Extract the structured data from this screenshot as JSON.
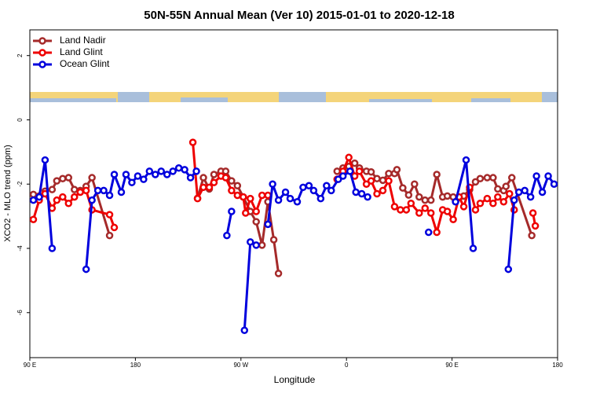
{
  "chart_data": {
    "type": "line",
    "title": "50N-55N Annual Mean (Ver 10)   2015-01-01 to 2020-12-18",
    "xlabel": "Longitude",
    "ylabel": "XCO2 - MLO trend (ppm)",
    "xlim": [
      90,
      540
    ],
    "ylim": [
      -7.4,
      2.8
    ],
    "xticks": [
      {
        "value": 90,
        "label": "90 E"
      },
      180,
      {
        "value": 270,
        "label": "90 W"
      },
      {
        "value": 360,
        "label": "0"
      },
      {
        "value": 450,
        "label": "90 E"
      },
      {
        "value": 540,
        "label": "180"
      }
    ],
    "yticks": [
      2,
      0,
      -2,
      -4,
      -6
    ],
    "legend": "upper left",
    "series": [
      {
        "name": "Land Nadir",
        "color": "#a52a2a",
        "x": [
          93,
          98,
          103,
          109,
          113,
          118,
          123,
          128,
          133,
          138,
          143,
          158,
          null,
          233,
          238,
          243,
          247,
          253,
          257,
          262,
          267,
          272,
          278,
          283,
          288,
          293,
          298,
          302,
          null,
          352,
          357,
          362,
          367,
          371,
          377,
          381,
          386,
          391,
          396,
          401,
          403,
          408,
          413,
          418,
          422,
          427,
          432,
          437,
          442,
          446,
          451,
          456,
          460,
          465,
          470,
          474,
          480,
          485,
          489,
          494,
          496,
          501,
          518
        ],
        "values": [
          -2.32,
          -2.37,
          -2.22,
          -2.17,
          -1.9,
          -1.83,
          -1.8,
          -2.17,
          -2.2,
          -2.07,
          -1.8,
          -3.6,
          null,
          -2.44,
          -1.8,
          -2.15,
          -1.7,
          -1.6,
          -1.6,
          -1.9,
          -2.05,
          -2.4,
          -2.85,
          -3.17,
          -3.9,
          -2.55,
          -3.73,
          -4.78,
          null,
          -1.6,
          -1.5,
          -1.45,
          -1.35,
          -1.5,
          -1.6,
          -1.62,
          -1.83,
          -1.88,
          -1.67,
          -1.67,
          -1.55,
          -2.12,
          -2.34,
          -2.0,
          -2.4,
          -2.5,
          -2.5,
          -1.7,
          -2.4,
          -2.37,
          -2.4,
          -2.42,
          -2.37,
          -2.17,
          -1.93,
          -1.83,
          -1.8,
          -1.8,
          -2.15,
          -2.2,
          -2.07,
          -1.8,
          -3.6
        ]
      },
      {
        "name": "Land Glint",
        "color": "#ee0000",
        "x": [
          93,
          98,
          103,
          109,
          113,
          118,
          123,
          128,
          133,
          138,
          143,
          158,
          162,
          null,
          229,
          233,
          238,
          243,
          247,
          253,
          257,
          262,
          267,
          272,
          274,
          278,
          283,
          288,
          293,
          null,
          352,
          357,
          362,
          367,
          371,
          377,
          381,
          386,
          391,
          396,
          401,
          406,
          411,
          415,
          422,
          427,
          432,
          437,
          442,
          446,
          451,
          456,
          460,
          465,
          470,
          474,
          480,
          485,
          489,
          494,
          499,
          503,
          null,
          519,
          521
        ],
        "values": [
          -3.1,
          -2.5,
          -2.3,
          -2.75,
          -2.5,
          -2.4,
          -2.6,
          -2.4,
          -2.25,
          -2.2,
          -2.8,
          -2.95,
          -3.35,
          null,
          -0.7,
          -2.45,
          -2.1,
          -2.1,
          -1.95,
          -1.75,
          -1.8,
          -2.2,
          -2.35,
          -2.4,
          -2.9,
          -2.45,
          -2.85,
          -2.35,
          -2.35,
          null,
          -1.85,
          -1.6,
          -1.17,
          -1.75,
          -1.6,
          -2.0,
          -1.9,
          -2.3,
          -2.2,
          -1.9,
          -2.7,
          -2.8,
          -2.8,
          -2.6,
          -2.9,
          -2.75,
          -2.9,
          -3.5,
          -2.8,
          -2.85,
          -3.1,
          -2.4,
          -2.7,
          -2.1,
          -2.8,
          -2.6,
          -2.45,
          -2.6,
          -2.4,
          -2.55,
          -2.3,
          -2.8,
          null,
          -2.9,
          -3.3
        ]
      },
      {
        "name": "Ocean Glint",
        "color": "#0000dd",
        "x": [
          93,
          98,
          103,
          109,
          null,
          138,
          143,
          148,
          153,
          158,
          162,
          168,
          172,
          177,
          182,
          187,
          192,
          197,
          202,
          207,
          212,
          217,
          222,
          227,
          232,
          null,
          258,
          262,
          null,
          273,
          278,
          283,
          null,
          293,
          297,
          302,
          308,
          312,
          318,
          323,
          328,
          332,
          338,
          343,
          347,
          353,
          357,
          363,
          368,
          373,
          378,
          null,
          430,
          null,
          453,
          462,
          468,
          null,
          498,
          503,
          507,
          512,
          517,
          522,
          527,
          532,
          537
        ],
        "values": [
          -2.5,
          -2.4,
          -1.25,
          -4.0,
          null,
          -4.65,
          -2.5,
          -2.2,
          -2.2,
          -2.35,
          -1.7,
          -2.25,
          -1.7,
          -1.95,
          -1.75,
          -1.85,
          -1.6,
          -1.7,
          -1.6,
          -1.7,
          -1.6,
          -1.5,
          -1.55,
          -1.8,
          -1.6,
          null,
          -3.6,
          -2.85,
          null,
          -6.55,
          -3.8,
          -3.9,
          null,
          -3.25,
          -2.0,
          -2.5,
          -2.25,
          -2.45,
          -2.55,
          -2.1,
          -2.05,
          -2.2,
          -2.45,
          -2.05,
          -2.2,
          -1.85,
          -1.75,
          -1.6,
          -2.25,
          -2.3,
          -2.4,
          null,
          -3.5,
          null,
          -2.55,
          -1.25,
          -4.0,
          null,
          -4.65,
          -2.5,
          -2.25,
          -2.2,
          -2.4,
          -1.75,
          -2.25,
          -1.75,
          -2.0
        ]
      }
    ]
  }
}
